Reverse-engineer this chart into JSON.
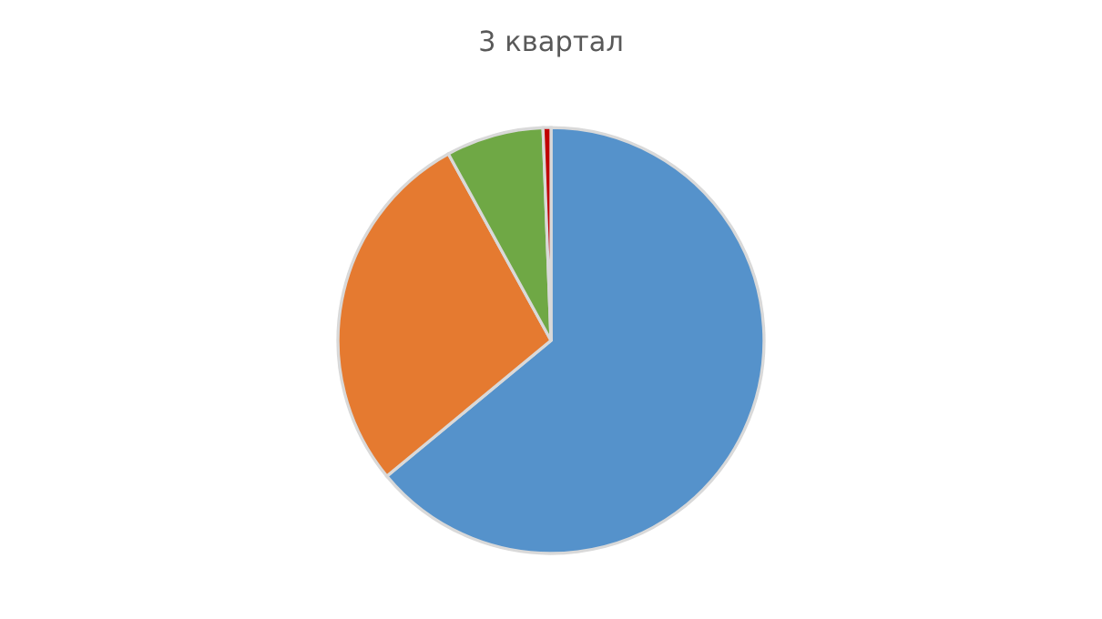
{
  "chart_data": {
    "type": "pie",
    "title": "3 квартал",
    "categories": [
      null,
      null,
      null,
      null
    ],
    "values": [
      64,
      28,
      7.4,
      0.6
    ],
    "colors": [
      "#5592cb",
      "#e57a30",
      "#6fa845",
      "#c00000"
    ]
  }
}
